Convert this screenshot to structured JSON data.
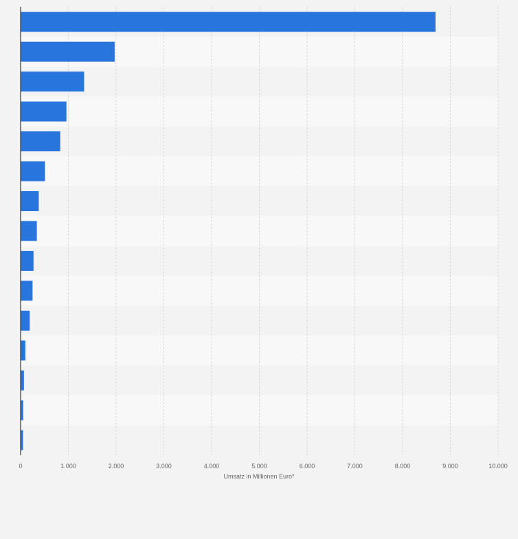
{
  "chart_data": {
    "type": "bar",
    "orientation": "horizontal",
    "title": "",
    "xlabel": "Umsatz in Millionen Euro*",
    "ylabel": "",
    "xlim": [
      0,
      10000
    ],
    "xticks": [
      0,
      1000,
      2000,
      3000,
      4000,
      5000,
      6000,
      7000,
      8000,
      9000,
      10000
    ],
    "xtick_labels": [
      "0",
      "1.000",
      "2.000",
      "3.000",
      "4.000",
      "5.000",
      "6.000",
      "7.000",
      "8.000",
      "9.000",
      "10.000"
    ],
    "categories": [
      "",
      "",
      "",
      "",
      "",
      "",
      "",
      "",
      "",
      "",
      "",
      "",
      "",
      "",
      ""
    ],
    "values": [
      8690,
      1970,
      1330,
      960,
      830,
      510,
      380,
      340,
      270,
      250,
      190,
      100,
      70,
      55,
      50
    ],
    "grid": true,
    "legend": "none",
    "colors": {
      "bar": "#2876dd",
      "band_light": "#f8f8f8",
      "band_dark": "#f3f3f3",
      "grid": "#d9d9d9",
      "axis": "#333333",
      "tick_text": "#666666"
    }
  }
}
